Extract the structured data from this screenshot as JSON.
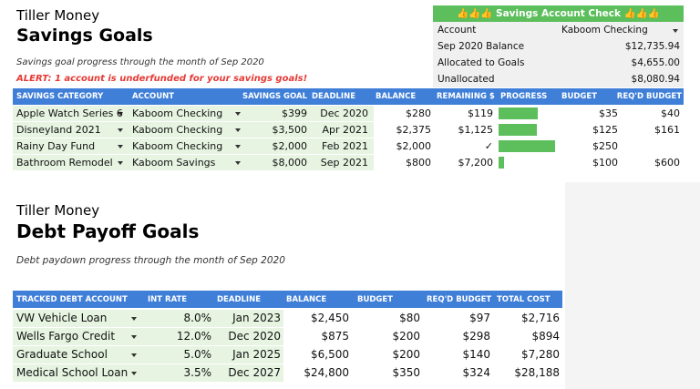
{
  "savings": {
    "brand": "Tiller Money",
    "title": "Savings Goals",
    "subtitle": "Savings goal progress through the month of Sep 2020",
    "alert": "ALERT: 1 account is underfunded for your savings goals!",
    "columns": [
      "SAVINGS CATEGORY",
      "ACCOUNT",
      "SAVINGS GOAL",
      "DEADLINE",
      "BALANCE",
      "REMAINING $",
      "PROGRESS",
      "BUDGET",
      "REQ'D BUDGET"
    ],
    "rows": [
      {
        "category": "Apple Watch Series 6",
        "account": "Kaboom Checking",
        "goal": "$399",
        "deadline": "Dec 2020",
        "balance": "$280",
        "remaining": "$119",
        "progress": 0.7,
        "budget": "$35",
        "required": "$40"
      },
      {
        "category": "Disneyland 2021",
        "account": "Kaboom Checking",
        "goal": "$3,500",
        "deadline": "Apr 2021",
        "balance": "$2,375",
        "remaining": "$1,125",
        "progress": 0.68,
        "budget": "$125",
        "required": "$161"
      },
      {
        "category": "Rainy Day Fund",
        "account": "Kaboom Checking",
        "goal": "$2,000",
        "deadline": "Feb 2021",
        "balance": "$2,000",
        "remaining": "✓",
        "progress": 1,
        "budget": "$250"
      },
      {
        "category": "Bathroom Remodel",
        "account": "Kaboom Savings",
        "goal": "$8,000",
        "deadline": "Sep 2021",
        "balance": "$800",
        "remaining": "$7,200",
        "progress": 0.1,
        "budget": "$100",
        "required": "$600"
      }
    ]
  },
  "account_check": {
    "title": "👍👍👍 Savings Account Check 👍👍👍",
    "rows": [
      [
        "Account",
        "Kaboom Checking"
      ],
      [
        "Sep 2020 Balance",
        "$12,735.94"
      ],
      [
        "Allocated to Goals",
        "$4,655.00"
      ],
      [
        "Unallocated",
        "$8,080.94"
      ]
    ]
  },
  "debt": {
    "brand": "Tiller Money",
    "title": "Debt Payoff Goals",
    "subtitle": "Debt paydown progress through the month of Sep 2020",
    "columns": [
      "TRACKED DEBT ACCOUNT",
      "INT RATE",
      "DEADLINE",
      "BALANCE",
      "BUDGET",
      "REQ'D BUDGET",
      "TOTAL COST"
    ],
    "rows": [
      {
        "account": "VW Vehicle Loan",
        "rate": "8.0%",
        "deadline": "Jan 2023",
        "balance": "$2,450",
        "budget": "$80",
        "required": "$97",
        "total": "$2,716"
      },
      {
        "account": "Wells Fargo Credit",
        "rate": "12.0%",
        "deadline": "Dec 2020",
        "balance": "$875",
        "budget": "$200",
        "required": "$298",
        "total": "$894"
      },
      {
        "account": "Graduate School",
        "rate": "5.0%",
        "deadline": "Jan 2025",
        "balance": "$6,500",
        "budget": "$200",
        "required": "$140",
        "total": "$7,280"
      },
      {
        "account": "Medical School Loan",
        "rate": "3.5%",
        "deadline": "Dec 2027",
        "balance": "$24,800",
        "budget": "$350",
        "required": "$324",
        "total": "$28,188"
      }
    ]
  }
}
